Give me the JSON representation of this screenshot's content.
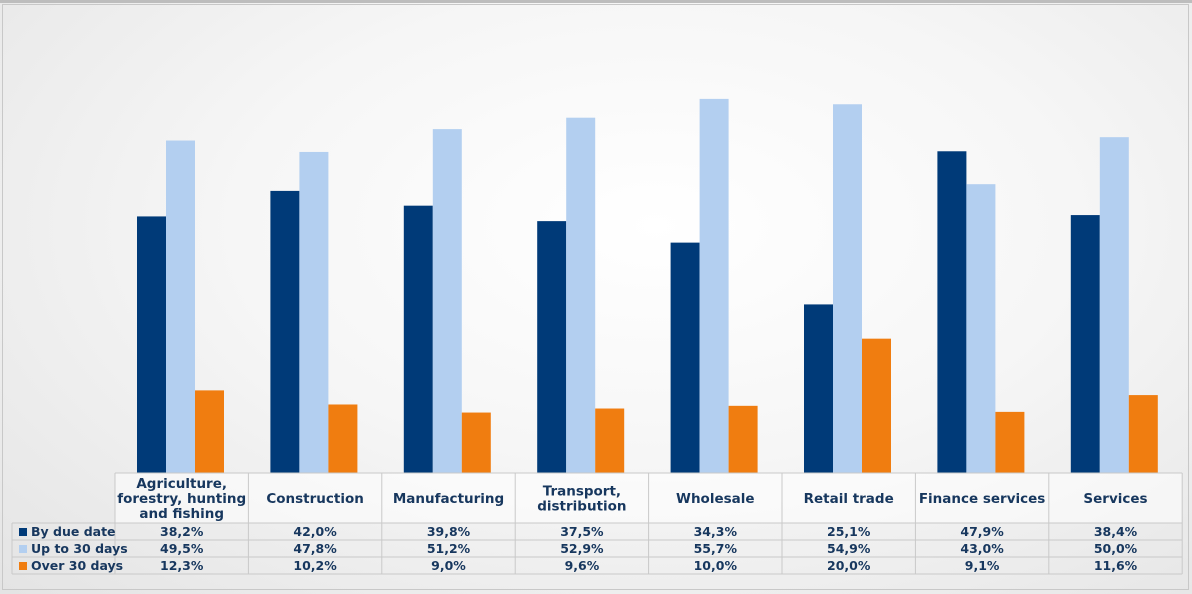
{
  "chart_data": {
    "type": "bar",
    "categories": [
      "Agriculture,\nforestry, hunting\nand fishing",
      "Construction",
      "Manufacturing",
      "Transport,\ndistribution",
      "Wholesale",
      "Retail trade",
      "Finance services",
      "Services"
    ],
    "series": [
      {
        "name": "By due date",
        "color": "#003a78",
        "values": [
          38.2,
          42.0,
          39.8,
          37.5,
          34.3,
          25.1,
          47.9,
          38.4
        ],
        "labels": [
          "38,2%",
          "42,0%",
          "39,8%",
          "37,5%",
          "34,3%",
          "25,1%",
          "47,9%",
          "38,4%"
        ]
      },
      {
        "name": "Up to 30 days",
        "color": "#b3cff0",
        "values": [
          49.5,
          47.8,
          51.2,
          52.9,
          55.7,
          54.9,
          43.0,
          50.0
        ],
        "labels": [
          "49,5%",
          "47,8%",
          "51,2%",
          "52,9%",
          "55,7%",
          "54,9%",
          "43,0%",
          "50,0%"
        ]
      },
      {
        "name": "Over 30 days",
        "color": "#f07d10",
        "values": [
          12.3,
          10.2,
          9.0,
          9.6,
          10.0,
          20.0,
          9.1,
          11.6
        ],
        "labels": [
          "12,3%",
          "10,2%",
          "9,0%",
          "9,6%",
          "10,0%",
          "20,0%",
          "9,1%",
          "11,6%"
        ]
      }
    ],
    "title": "",
    "xlabel": "",
    "ylabel": "",
    "ylim": [
      0,
      60
    ],
    "grid": false,
    "legend": "data-table"
  }
}
